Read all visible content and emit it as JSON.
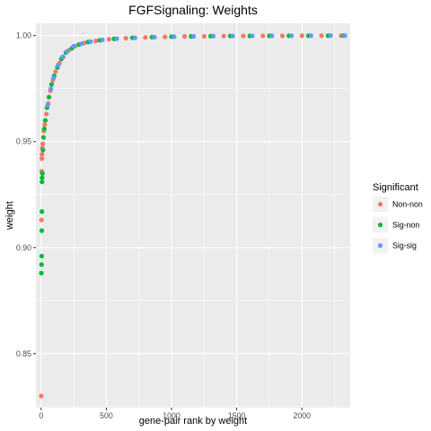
{
  "chart_data": {
    "type": "scatter",
    "title": "FGFSignaling: Weights",
    "xlabel": "gene-pair rank by weight",
    "ylabel": "weight",
    "xlim": [
      -40,
      2370
    ],
    "ylim": [
      0.8245,
      1.0058
    ],
    "x_ticks": [
      0,
      500,
      1000,
      1500,
      2000
    ],
    "x_tick_labels": [
      "0",
      "500",
      "1000",
      "1500",
      "2000"
    ],
    "y_ticks": [
      0.85,
      0.9,
      0.95,
      1.0
    ],
    "y_tick_labels": [
      "0.85",
      "0.90",
      "0.95",
      "1.00"
    ],
    "grid": true,
    "legend": {
      "title": "Significant",
      "placement": "right",
      "entries": [
        "Non-non",
        "Sig-non",
        "Sig-sig"
      ]
    },
    "colors": {
      "Non-non": "#F8766D",
      "Sig-non": "#00BA38",
      "Sig-sig": "#619CFF",
      "panel": "#EBEBEB",
      "grid": "#FFFFFF"
    },
    "series": [
      {
        "name": "Non-non",
        "points": [
          [
            1,
            0.83
          ],
          [
            3,
            0.913
          ],
          [
            5,
            0.936
          ],
          [
            6,
            0.942
          ],
          [
            7,
            0.944
          ],
          [
            9,
            0.947
          ],
          [
            12,
            0.949
          ],
          [
            20,
            0.955
          ],
          [
            28,
            0.958
          ],
          [
            40,
            0.963
          ],
          [
            55,
            0.968
          ],
          [
            70,
            0.974
          ],
          [
            90,
            0.979
          ],
          [
            110,
            0.983
          ],
          [
            140,
            0.987
          ],
          [
            170,
            0.99
          ],
          [
            210,
            0.993
          ],
          [
            260,
            0.995
          ],
          [
            330,
            0.9965
          ],
          [
            420,
            0.9975
          ],
          [
            520,
            0.9983
          ],
          [
            650,
            0.9988
          ],
          [
            800,
            0.9992
          ],
          [
            950,
            0.9994
          ],
          [
            1100,
            0.9996
          ],
          [
            1250,
            0.9997
          ],
          [
            1400,
            0.9998
          ],
          [
            1550,
            0.99985
          ],
          [
            1700,
            0.9999
          ],
          [
            1850,
            0.99993
          ],
          [
            2000,
            0.99996
          ],
          [
            2150,
            0.99998
          ],
          [
            2300,
            1.0
          ]
        ]
      },
      {
        "name": "Sig-non",
        "points": [
          [
            2,
            0.888
          ],
          [
            3,
            0.892
          ],
          [
            4,
            0.896
          ],
          [
            5,
            0.908
          ],
          [
            6,
            0.917
          ],
          [
            7,
            0.931
          ],
          [
            8,
            0.933
          ],
          [
            10,
            0.935
          ],
          [
            14,
            0.946
          ],
          [
            18,
            0.952
          ],
          [
            24,
            0.956
          ],
          [
            32,
            0.96
          ],
          [
            45,
            0.966
          ],
          [
            60,
            0.971
          ],
          [
            80,
            0.977
          ],
          [
            100,
            0.981
          ],
          [
            125,
            0.985
          ],
          [
            155,
            0.989
          ],
          [
            190,
            0.992
          ],
          [
            235,
            0.994
          ],
          [
            290,
            0.9958
          ],
          [
            360,
            0.997
          ],
          [
            450,
            0.9978
          ],
          [
            560,
            0.9985
          ],
          [
            700,
            0.999
          ],
          [
            850,
            0.9993
          ],
          [
            1000,
            0.9995
          ],
          [
            1150,
            0.99965
          ],
          [
            1300,
            0.99975
          ],
          [
            1450,
            0.99983
          ],
          [
            1600,
            0.99988
          ],
          [
            1750,
            0.99992
          ],
          [
            1900,
            0.99995
          ],
          [
            2050,
            0.99997
          ],
          [
            2200,
            0.99999
          ],
          [
            2320,
            1.0
          ]
        ]
      },
      {
        "name": "Sig-sig",
        "points": [
          [
            50,
            0.967
          ],
          [
            75,
            0.975
          ],
          [
            95,
            0.98
          ],
          [
            130,
            0.986
          ],
          [
            165,
            0.99
          ],
          [
            200,
            0.9925
          ],
          [
            250,
            0.995
          ],
          [
            310,
            0.9962
          ],
          [
            380,
            0.9972
          ],
          [
            470,
            0.998
          ],
          [
            580,
            0.9986
          ],
          [
            720,
            0.999
          ],
          [
            870,
            0.9993
          ],
          [
            1020,
            0.9995
          ],
          [
            1170,
            0.99965
          ],
          [
            1320,
            0.99977
          ],
          [
            1470,
            0.99985
          ],
          [
            1620,
            0.9999
          ],
          [
            1770,
            0.99993
          ],
          [
            1920,
            0.99995
          ],
          [
            2070,
            0.99997
          ],
          [
            2220,
            0.99999
          ],
          [
            2330,
            1.0
          ]
        ]
      }
    ]
  }
}
